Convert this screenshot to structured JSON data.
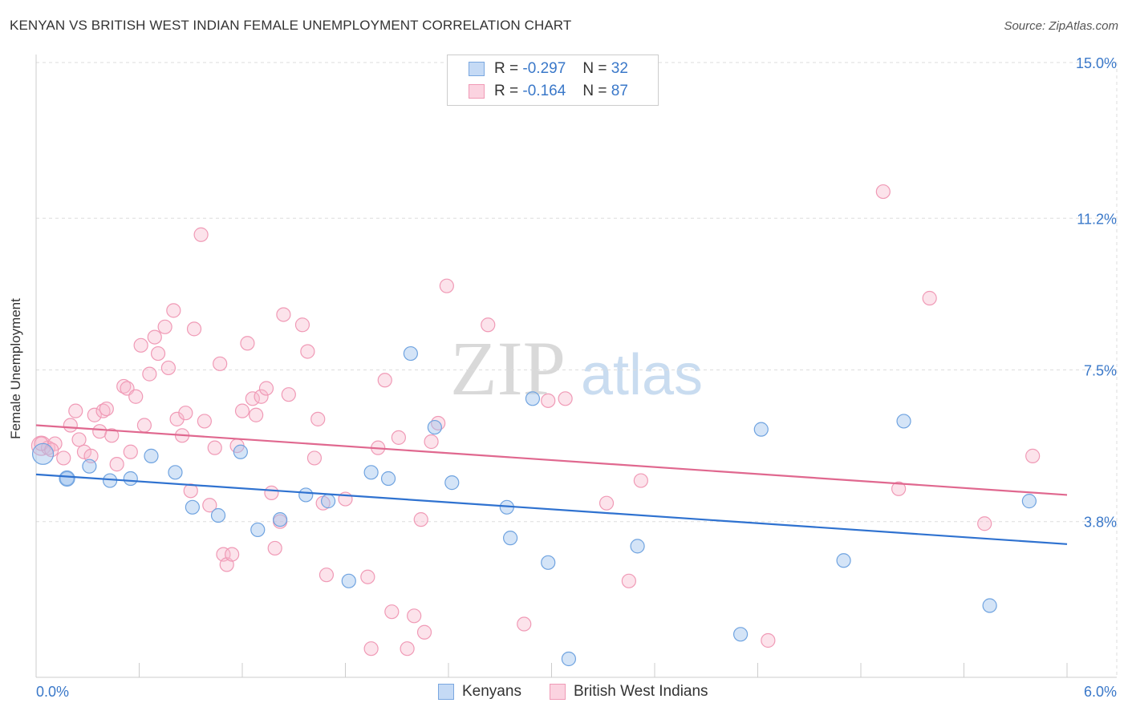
{
  "header": {
    "title": "KENYAN VS BRITISH WEST INDIAN FEMALE UNEMPLOYMENT CORRELATION CHART",
    "source": "Source: ZipAtlas.com"
  },
  "watermark": {
    "zip": "ZIP",
    "atlas": "atlas"
  },
  "legend": {
    "rows": [
      {
        "r_label": "R =",
        "r_value": "-0.297",
        "n_label": "N =",
        "n_value": "32"
      },
      {
        "r_label": "R =",
        "r_value": "-0.164",
        "n_label": "N =",
        "n_value": "87"
      }
    ]
  },
  "chart_data": {
    "type": "scatter",
    "title": "KENYAN VS BRITISH WEST INDIAN FEMALE UNEMPLOYMENT CORRELATION CHART",
    "xlabel": "",
    "ylabel": "Female Unemployment",
    "xlim": [
      0,
      6.0
    ],
    "ylim": [
      0,
      15.0
    ],
    "x_tick_labels": [
      "0.0%",
      "6.0%"
    ],
    "y_ticks": [
      3.8,
      7.5,
      11.2,
      15.0
    ],
    "y_tick_labels": [
      "3.8%",
      "7.5%",
      "11.2%",
      "15.0%"
    ],
    "grid": true,
    "legend_position": "top-center",
    "colors": {
      "kenyans": "#6fa3e0",
      "kenyans_line": "#2f72d0",
      "bwi": "#f09ab6",
      "bwi_line": "#e0688f",
      "tick_text": "#3a78c9"
    },
    "series": [
      {
        "name": "Kenyans",
        "r": -0.297,
        "n": 32,
        "trend": {
          "x": [
            0,
            6.0
          ],
          "y": [
            4.95,
            3.25
          ]
        },
        "points": [
          [
            0.04,
            5.45
          ],
          [
            0.18,
            4.85
          ],
          [
            0.31,
            5.15
          ],
          [
            0.43,
            4.8
          ],
          [
            0.55,
            4.85
          ],
          [
            0.67,
            5.4
          ],
          [
            0.81,
            5.0
          ],
          [
            0.91,
            4.15
          ],
          [
            1.06,
            3.95
          ],
          [
            1.19,
            5.5
          ],
          [
            1.29,
            3.6
          ],
          [
            1.42,
            3.85
          ],
          [
            1.57,
            4.45
          ],
          [
            1.7,
            4.3
          ],
          [
            1.82,
            2.35
          ],
          [
            1.95,
            5.0
          ],
          [
            2.05,
            4.85
          ],
          [
            2.18,
            7.9
          ],
          [
            2.32,
            6.1
          ],
          [
            2.42,
            4.75
          ],
          [
            2.74,
            4.15
          ],
          [
            2.76,
            3.4
          ],
          [
            2.89,
            6.8
          ],
          [
            2.98,
            2.8
          ],
          [
            3.1,
            0.45
          ],
          [
            3.5,
            3.2
          ],
          [
            4.1,
            1.05
          ],
          [
            4.22,
            6.05
          ],
          [
            4.7,
            2.85
          ],
          [
            5.05,
            6.25
          ],
          [
            5.55,
            1.75
          ],
          [
            5.78,
            4.3
          ]
        ]
      },
      {
        "name": "British West Indians",
        "r": -0.164,
        "n": 87,
        "trend": {
          "x": [
            0,
            6.0
          ],
          "y": [
            6.15,
            4.45
          ]
        },
        "points": [
          [
            0.03,
            5.65
          ],
          [
            0.07,
            5.6
          ],
          [
            0.11,
            5.7
          ],
          [
            0.16,
            5.35
          ],
          [
            0.2,
            6.15
          ],
          [
            0.23,
            6.5
          ],
          [
            0.25,
            5.8
          ],
          [
            0.28,
            5.5
          ],
          [
            0.32,
            5.4
          ],
          [
            0.34,
            6.4
          ],
          [
            0.37,
            6.0
          ],
          [
            0.39,
            6.5
          ],
          [
            0.41,
            6.55
          ],
          [
            0.44,
            5.9
          ],
          [
            0.47,
            5.2
          ],
          [
            0.51,
            7.1
          ],
          [
            0.53,
            7.05
          ],
          [
            0.55,
            5.5
          ],
          [
            0.58,
            6.85
          ],
          [
            0.61,
            8.1
          ],
          [
            0.63,
            6.15
          ],
          [
            0.66,
            7.4
          ],
          [
            0.69,
            8.3
          ],
          [
            0.71,
            7.9
          ],
          [
            0.75,
            8.55
          ],
          [
            0.77,
            7.55
          ],
          [
            0.8,
            8.95
          ],
          [
            0.82,
            6.3
          ],
          [
            0.85,
            5.9
          ],
          [
            0.87,
            6.45
          ],
          [
            0.9,
            4.55
          ],
          [
            0.92,
            8.5
          ],
          [
            0.96,
            10.8
          ],
          [
            0.98,
            6.25
          ],
          [
            1.01,
            4.2
          ],
          [
            1.04,
            5.6
          ],
          [
            1.07,
            7.65
          ],
          [
            1.09,
            3.0
          ],
          [
            1.11,
            2.75
          ],
          [
            1.14,
            3.0
          ],
          [
            1.17,
            5.65
          ],
          [
            1.2,
            6.5
          ],
          [
            1.23,
            8.15
          ],
          [
            1.26,
            6.8
          ],
          [
            1.28,
            6.4
          ],
          [
            1.31,
            6.85
          ],
          [
            1.34,
            7.05
          ],
          [
            1.37,
            4.5
          ],
          [
            1.39,
            3.15
          ],
          [
            1.42,
            3.8
          ],
          [
            1.44,
            8.85
          ],
          [
            1.47,
            6.9
          ],
          [
            1.55,
            8.6
          ],
          [
            1.58,
            7.95
          ],
          [
            1.62,
            5.35
          ],
          [
            1.64,
            6.3
          ],
          [
            1.67,
            4.25
          ],
          [
            1.69,
            2.5
          ],
          [
            1.8,
            4.35
          ],
          [
            1.93,
            2.45
          ],
          [
            1.95,
            0.7
          ],
          [
            1.99,
            5.6
          ],
          [
            2.03,
            7.25
          ],
          [
            2.07,
            1.6
          ],
          [
            2.11,
            5.85
          ],
          [
            2.16,
            0.7
          ],
          [
            2.2,
            1.5
          ],
          [
            2.24,
            3.85
          ],
          [
            2.26,
            1.1
          ],
          [
            2.3,
            5.75
          ],
          [
            2.34,
            6.2
          ],
          [
            2.39,
            9.55
          ],
          [
            2.63,
            8.6
          ],
          [
            2.84,
            1.3
          ],
          [
            2.98,
            6.75
          ],
          [
            3.08,
            6.8
          ],
          [
            3.32,
            4.25
          ],
          [
            3.45,
            2.35
          ],
          [
            3.52,
            4.8
          ],
          [
            4.26,
            0.9
          ],
          [
            4.93,
            11.85
          ],
          [
            5.02,
            4.6
          ],
          [
            5.2,
            9.25
          ],
          [
            5.52,
            3.75
          ],
          [
            5.8,
            5.4
          ],
          [
            0.03,
            5.7
          ],
          [
            0.09,
            5.55
          ]
        ]
      }
    ]
  },
  "bottom_legend": {
    "items": [
      {
        "label": "Kenyans"
      },
      {
        "label": "British West Indians"
      }
    ]
  }
}
